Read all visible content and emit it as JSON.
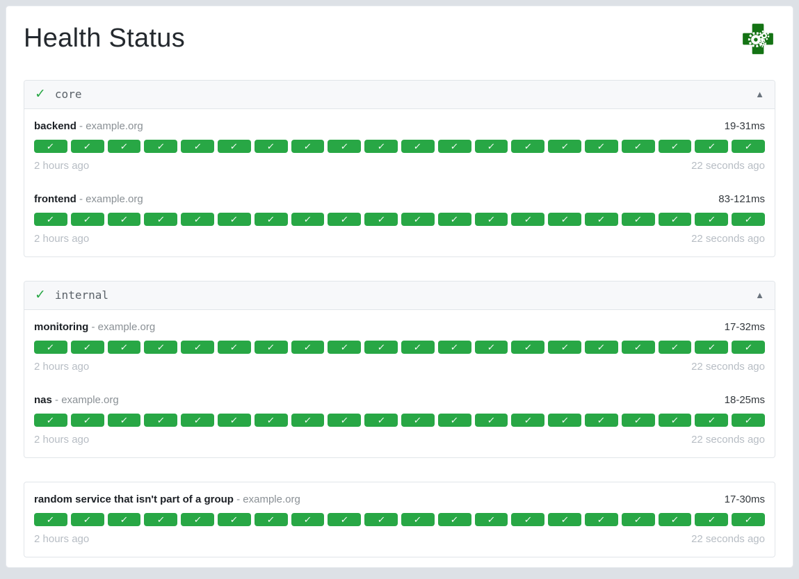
{
  "page": {
    "title": "Health Status"
  },
  "icons": {
    "group_status": "✓",
    "collapse": "▲",
    "check": "✓"
  },
  "colors": {
    "success": "#28a745",
    "logo_green": "#147314"
  },
  "groups": [
    {
      "name": "core",
      "services": [
        {
          "name": "backend",
          "host": "- example.org",
          "response_time": "19-31ms",
          "oldest_check": "2 hours ago",
          "newest_check": "22 seconds ago",
          "history_count": 20,
          "history_status": "success"
        },
        {
          "name": "frontend",
          "host": "- example.org",
          "response_time": "83-121ms",
          "oldest_check": "2 hours ago",
          "newest_check": "22 seconds ago",
          "history_count": 20,
          "history_status": "success"
        }
      ]
    },
    {
      "name": "internal",
      "services": [
        {
          "name": "monitoring",
          "host": "- example.org",
          "response_time": "17-32ms",
          "oldest_check": "2 hours ago",
          "newest_check": "22 seconds ago",
          "history_count": 20,
          "history_status": "success"
        },
        {
          "name": "nas",
          "host": "- example.org",
          "response_time": "18-25ms",
          "oldest_check": "2 hours ago",
          "newest_check": "22 seconds ago",
          "history_count": 20,
          "history_status": "success"
        }
      ]
    },
    {
      "name": null,
      "services": [
        {
          "name": "random service that isn't part of a group",
          "host": "- example.org",
          "response_time": "17-30ms",
          "oldest_check": "2 hours ago",
          "newest_check": "22 seconds ago",
          "history_count": 20,
          "history_status": "success"
        }
      ]
    }
  ]
}
